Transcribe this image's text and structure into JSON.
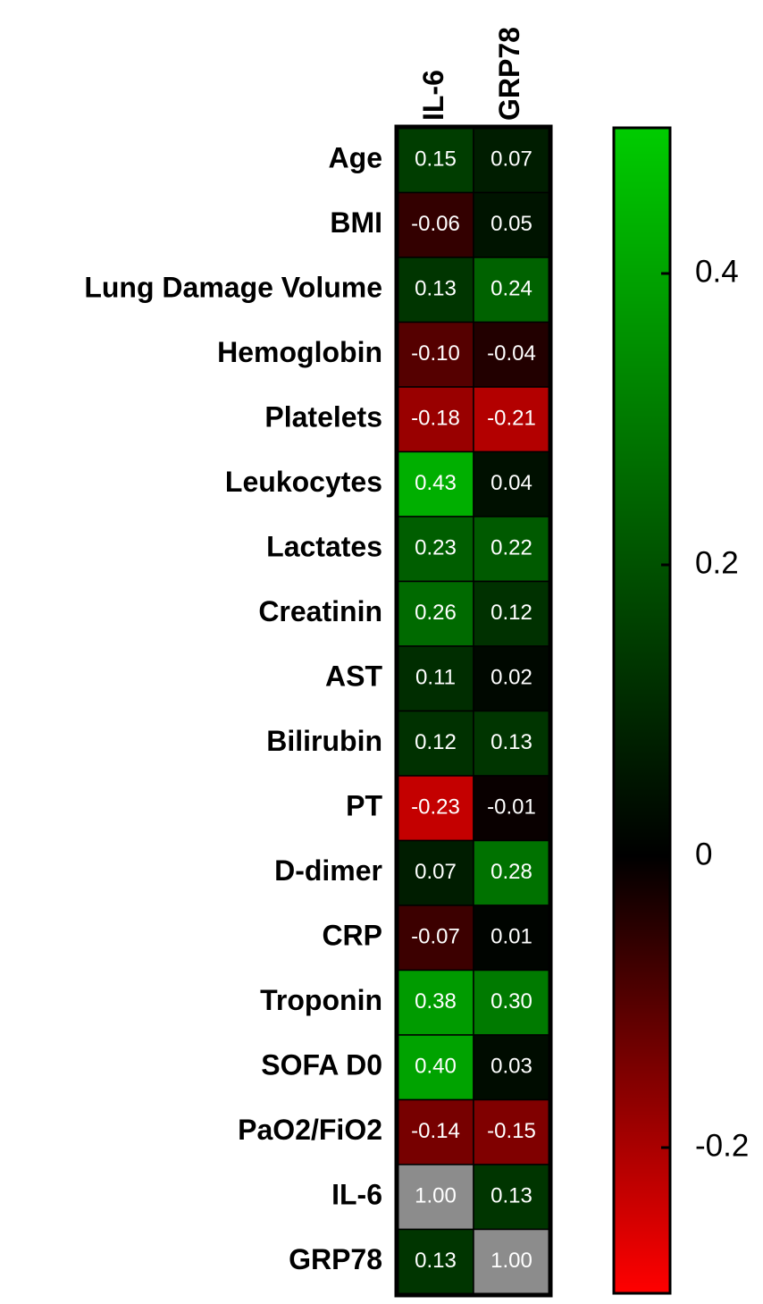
{
  "chart_data": {
    "type": "heatmap",
    "x": [
      "IL-6",
      "GRP78"
    ],
    "y": [
      "Age",
      "BMI",
      "Lung Damage Volume",
      "Hemoglobin",
      "Platelets",
      "Leukocytes",
      "Lactates",
      "Creatinin",
      "AST",
      "Bilirubin",
      "PT",
      "D-dimer",
      "CRP",
      "Troponin",
      "SOFA D0",
      "PaO2/FiO2",
      "IL-6",
      "GRP78"
    ],
    "values": [
      [
        0.15,
        0.07
      ],
      [
        -0.06,
        0.05
      ],
      [
        0.13,
        0.24
      ],
      [
        -0.1,
        -0.04
      ],
      [
        -0.18,
        -0.21
      ],
      [
        0.43,
        0.04
      ],
      [
        0.23,
        0.22
      ],
      [
        0.26,
        0.12
      ],
      [
        0.11,
        0.02
      ],
      [
        0.12,
        0.13
      ],
      [
        -0.23,
        -0.01
      ],
      [
        0.07,
        0.28
      ],
      [
        -0.07,
        0.01
      ],
      [
        0.38,
        0.3
      ],
      [
        0.4,
        0.03
      ],
      [
        -0.14,
        -0.15
      ],
      [
        1.0,
        0.13
      ],
      [
        0.13,
        1.0
      ]
    ],
    "value_labels": [
      [
        "0.15",
        "0.07"
      ],
      [
        "-0.06",
        "0.05"
      ],
      [
        "0.13",
        "0.24"
      ],
      [
        "-0.10",
        "-0.04"
      ],
      [
        "-0.18",
        "-0.21"
      ],
      [
        "0.43",
        "0.04"
      ],
      [
        "0.23",
        "0.22"
      ],
      [
        "0.26",
        "0.12"
      ],
      [
        "0.11",
        "0.02"
      ],
      [
        "0.12",
        "0.13"
      ],
      [
        "-0.23",
        "-0.01"
      ],
      [
        "0.07",
        "0.28"
      ],
      [
        "-0.07",
        "0.01"
      ],
      [
        "0.38",
        "0.30"
      ],
      [
        "0.40",
        "0.03"
      ],
      [
        "-0.14",
        "-0.15"
      ],
      [
        "1.00",
        "0.13"
      ],
      [
        "0.13",
        "1.00"
      ]
    ],
    "zlim": [
      -0.3,
      0.5
    ],
    "zticks": [
      -0.2,
      0,
      0.2,
      0.4
    ],
    "colors": {
      "low": "#ff0000",
      "mid": "#000000",
      "high": "#00cc00"
    },
    "diagonal_color": "#8c8c8c"
  }
}
